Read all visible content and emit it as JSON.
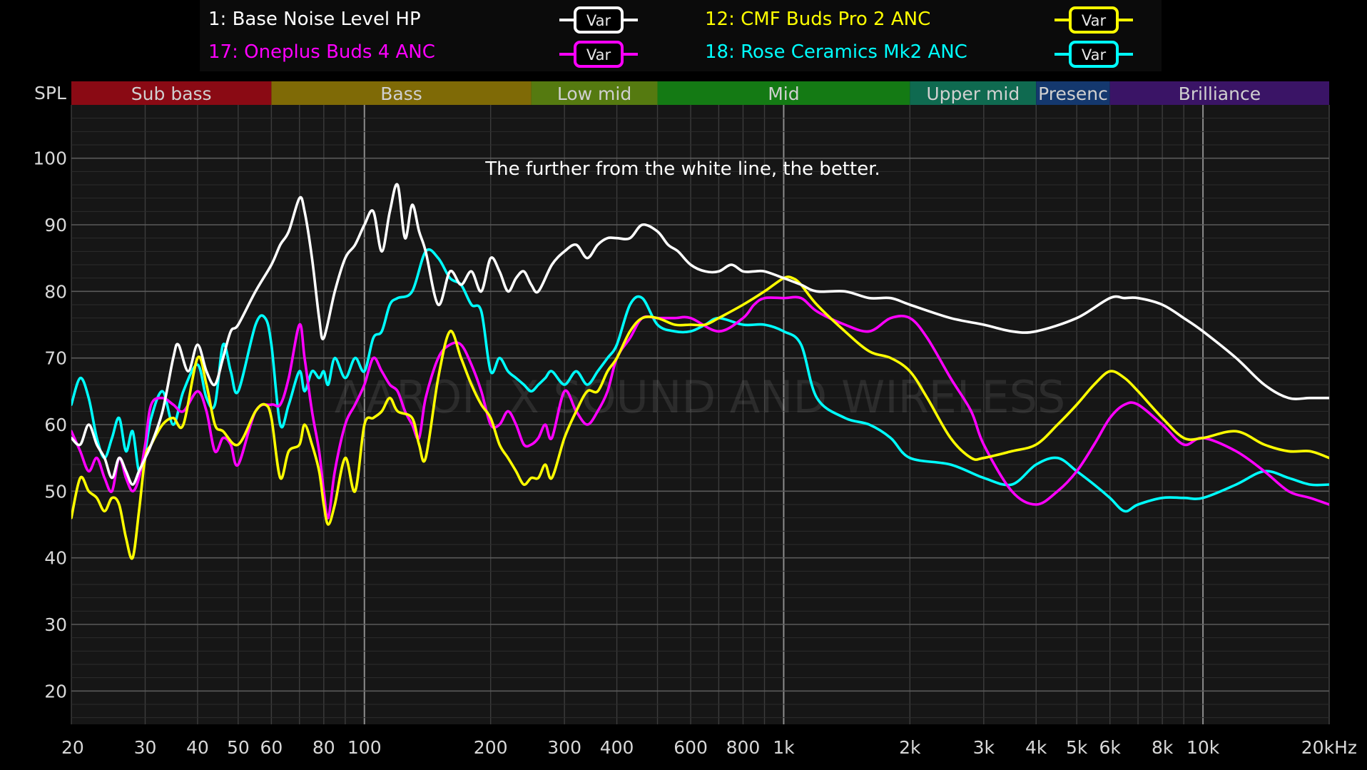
{
  "legend": [
    {
      "label": "1: Base Noise Level HP",
      "button": "Var",
      "color": "#ffffff"
    },
    {
      "label": "12: CMF Buds Pro 2 ANC",
      "button": "Var",
      "color": "#ffff00"
    },
    {
      "label": "17: Oneplus Buds 4 ANC",
      "button": "Var",
      "color": "#ff00ff"
    },
    {
      "label": "18: Rose Ceramics Mk2 ANC",
      "button": "Var",
      "color": "#00ffff"
    }
  ],
  "chart_data": {
    "type": "line",
    "annotation": "The further from the white line, the better.",
    "watermark": "AARON X SOUND AND WIRELESS",
    "ylabel": "SPL",
    "xscale": "log",
    "xlim": [
      20,
      20000
    ],
    "ylim": [
      15,
      108
    ],
    "grid": true,
    "yticks": [
      20,
      30,
      40,
      50,
      60,
      70,
      80,
      90,
      100
    ],
    "xticks": [
      {
        "v": 20,
        "label": "20"
      },
      {
        "v": 30,
        "label": "30"
      },
      {
        "v": 40,
        "label": "40"
      },
      {
        "v": 50,
        "label": "50"
      },
      {
        "v": 60,
        "label": "60"
      },
      {
        "v": 80,
        "label": "80"
      },
      {
        "v": 100,
        "label": "100"
      },
      {
        "v": 200,
        "label": "200"
      },
      {
        "v": 300,
        "label": "300"
      },
      {
        "v": 400,
        "label": "400"
      },
      {
        "v": 600,
        "label": "600"
      },
      {
        "v": 800,
        "label": "800"
      },
      {
        "v": 1000,
        "label": "1k"
      },
      {
        "v": 2000,
        "label": "2k"
      },
      {
        "v": 3000,
        "label": "3k"
      },
      {
        "v": 4000,
        "label": "4k"
      },
      {
        "v": 5000,
        "label": "5k"
      },
      {
        "v": 6000,
        "label": "6k"
      },
      {
        "v": 8000,
        "label": "8k"
      },
      {
        "v": 10000,
        "label": "10k"
      },
      {
        "v": 20000,
        "label": "20kHz"
      }
    ],
    "bands": [
      {
        "label": "Sub bass",
        "from": 20,
        "to": 60,
        "color": "#8a0a14"
      },
      {
        "label": "Bass",
        "from": 60,
        "to": 250,
        "color": "#7f6a06"
      },
      {
        "label": "Low mid",
        "from": 250,
        "to": 500,
        "color": "#557a10"
      },
      {
        "label": "Mid",
        "from": 500,
        "to": 2000,
        "color": "#147a14"
      },
      {
        "label": "Upper mid",
        "from": 2000,
        "to": 4000,
        "color": "#0f6a50"
      },
      {
        "label": "Presenc",
        "from": 4000,
        "to": 6000,
        "color": "#14386e"
      },
      {
        "label": "Brilliance",
        "from": 6000,
        "to": 20000,
        "color": "#3a1466"
      }
    ],
    "series": [
      {
        "name": "1: Base Noise Level HP",
        "color": "#ffffff",
        "x": [
          20,
          21,
          22,
          23,
          24,
          25,
          26,
          27,
          28,
          29,
          30,
          31,
          33,
          35,
          36,
          38,
          40,
          42,
          44,
          46,
          48,
          50,
          55,
          60,
          63,
          66,
          70,
          72,
          75,
          78,
          80,
          85,
          90,
          95,
          100,
          105,
          110,
          115,
          120,
          125,
          130,
          135,
          140,
          150,
          160,
          170,
          180,
          190,
          200,
          210,
          220,
          230,
          240,
          250,
          260,
          280,
          300,
          320,
          340,
          360,
          380,
          400,
          430,
          460,
          500,
          530,
          560,
          600,
          650,
          700,
          750,
          800,
          850,
          900,
          1000,
          1100,
          1200,
          1400,
          1600,
          1800,
          2000,
          2500,
          3000,
          3500,
          4000,
          5000,
          6000,
          6500,
          7000,
          8000,
          9000,
          10000,
          12000,
          14000,
          16000,
          18000,
          20000
        ],
        "y": [
          58,
          57,
          60,
          57,
          55,
          52,
          55,
          53,
          51,
          53,
          55,
          57,
          62,
          70,
          72,
          68,
          72,
          68,
          66,
          70,
          74,
          75,
          80,
          84,
          87,
          89,
          94,
          92,
          85,
          76,
          73,
          80,
          85,
          87,
          90,
          92,
          86,
          92,
          96,
          88,
          93,
          89,
          86,
          78,
          83,
          81,
          83,
          80,
          85,
          83,
          80,
          82,
          83,
          81,
          80,
          84,
          86,
          87,
          85,
          87,
          88,
          88,
          88,
          90,
          89,
          87,
          86,
          84,
          83,
          83,
          84,
          83,
          83,
          83,
          82,
          81,
          80,
          80,
          79,
          79,
          78,
          76,
          75,
          74,
          74,
          76,
          79,
          79,
          79,
          78,
          76,
          74,
          70,
          66,
          64,
          64,
          64
        ]
      },
      {
        "name": "12: CMF Buds Pro 2 ANC",
        "color": "#ffff00",
        "x": [
          20,
          21,
          22,
          23,
          24,
          25,
          26,
          27,
          28,
          29,
          30,
          31,
          33,
          35,
          37,
          40,
          42,
          44,
          46,
          50,
          55,
          58,
          60,
          63,
          66,
          70,
          72,
          75,
          78,
          80,
          82,
          85,
          90,
          95,
          100,
          105,
          110,
          115,
          120,
          130,
          135,
          140,
          150,
          160,
          170,
          180,
          190,
          200,
          210,
          220,
          230,
          240,
          250,
          260,
          270,
          280,
          300,
          320,
          340,
          360,
          380,
          400,
          430,
          460,
          500,
          550,
          600,
          650,
          700,
          800,
          900,
          1000,
          1050,
          1100,
          1200,
          1400,
          1600,
          1800,
          2000,
          2200,
          2500,
          2800,
          3000,
          3500,
          4000,
          4500,
          5000,
          5500,
          6000,
          6500,
          7000,
          8000,
          9000,
          10000,
          12000,
          14000,
          16000,
          18000,
          20000
        ],
        "y": [
          46,
          52,
          50,
          49,
          47,
          49,
          48,
          43,
          40,
          47,
          55,
          57,
          60,
          61,
          60,
          70,
          66,
          60,
          59,
          57,
          62,
          63,
          61,
          52,
          56,
          57,
          60,
          57,
          53,
          48,
          45,
          48,
          55,
          50,
          60,
          61,
          62,
          64,
          62,
          61,
          57,
          55,
          67,
          74,
          70,
          66,
          63,
          61,
          57,
          55,
          53,
          51,
          52,
          52,
          54,
          52,
          58,
          62,
          65,
          65,
          68,
          70,
          74,
          76,
          76,
          75,
          75,
          75,
          76,
          78,
          80,
          82,
          82,
          81,
          78,
          74,
          71,
          70,
          68,
          64,
          58,
          55,
          55,
          56,
          57,
          60,
          63,
          66,
          68,
          67,
          65,
          61,
          58,
          58,
          59,
          57,
          56,
          56,
          55
        ]
      },
      {
        "name": "17: Oneplus Buds 4 ANC",
        "color": "#ff00ff",
        "x": [
          20,
          21,
          22,
          23,
          24,
          25,
          26,
          27,
          28,
          29,
          30,
          31,
          33,
          35,
          37,
          40,
          42,
          44,
          46,
          48,
          50,
          55,
          60,
          63,
          66,
          70,
          72,
          75,
          78,
          80,
          82,
          85,
          90,
          95,
          100,
          105,
          110,
          115,
          120,
          125,
          130,
          135,
          140,
          150,
          160,
          170,
          180,
          190,
          200,
          210,
          220,
          230,
          240,
          250,
          260,
          270,
          280,
          300,
          320,
          340,
          360,
          380,
          400,
          430,
          460,
          500,
          550,
          600,
          700,
          800,
          850,
          900,
          1000,
          1100,
          1200,
          1400,
          1600,
          1800,
          2000,
          2200,
          2500,
          2800,
          3000,
          3500,
          4000,
          4500,
          5000,
          5500,
          6000,
          6500,
          7000,
          8000,
          9000,
          10000,
          12000,
          14000,
          16000,
          18000,
          20000
        ],
        "y": [
          59,
          56,
          53,
          55,
          52,
          50,
          55,
          52,
          50,
          52,
          57,
          63,
          64,
          63,
          62,
          65,
          62,
          56,
          58,
          57,
          54,
          62,
          63,
          63,
          67,
          75,
          70,
          62,
          56,
          50,
          46,
          53,
          60,
          63,
          66,
          70,
          68,
          66,
          65,
          62,
          60,
          58,
          64,
          70,
          72,
          72,
          69,
          65,
          60,
          60,
          62,
          60,
          57,
          57,
          58,
          60,
          58,
          65,
          62,
          60,
          62,
          65,
          70,
          73,
          76,
          76,
          76,
          76,
          74,
          76,
          78,
          79,
          79,
          79,
          77,
          75,
          74,
          76,
          76,
          73,
          67,
          62,
          57,
          50,
          48,
          50,
          53,
          57,
          61,
          63,
          63,
          60,
          57,
          58,
          56,
          53,
          50,
          49,
          48
        ]
      },
      {
        "name": "18: Rose Ceramics Mk2 ANC",
        "color": "#00ffff",
        "x": [
          20,
          21,
          22,
          23,
          24,
          25,
          26,
          27,
          28,
          29,
          30,
          31,
          33,
          35,
          37,
          40,
          42,
          44,
          46,
          48,
          50,
          55,
          58,
          60,
          63,
          66,
          70,
          72,
          75,
          78,
          80,
          82,
          85,
          90,
          95,
          100,
          105,
          110,
          115,
          120,
          130,
          140,
          150,
          160,
          170,
          180,
          190,
          200,
          210,
          220,
          230,
          240,
          250,
          260,
          270,
          280,
          300,
          320,
          340,
          360,
          380,
          400,
          430,
          460,
          500,
          550,
          600,
          650,
          700,
          800,
          900,
          1000,
          1100,
          1200,
          1400,
          1600,
          1800,
          2000,
          2500,
          3000,
          3500,
          4000,
          4500,
          5000,
          5500,
          6000,
          6500,
          7000,
          8000,
          9000,
          10000,
          12000,
          14000,
          16000,
          18000,
          20000
        ],
        "y": [
          63,
          67,
          64,
          58,
          55,
          58,
          61,
          56,
          59,
          53,
          56,
          61,
          65,
          60,
          65,
          69,
          64,
          63,
          72,
          68,
          65,
          75,
          76,
          72,
          60,
          63,
          68,
          65,
          68,
          67,
          68,
          66,
          70,
          67,
          70,
          68,
          73,
          74,
          78,
          79,
          80,
          86,
          85,
          82,
          81,
          78,
          77,
          68,
          70,
          68,
          67,
          66,
          65,
          66,
          67,
          68,
          66,
          68,
          66,
          68,
          70,
          72,
          78,
          79,
          75,
          74,
          74,
          75,
          76,
          75,
          75,
          74,
          72,
          64,
          61,
          60,
          58,
          55,
          54,
          52,
          51,
          54,
          55,
          53,
          51,
          49,
          47,
          48,
          49,
          49,
          49,
          51,
          53,
          52,
          51,
          51
        ]
      }
    ]
  }
}
